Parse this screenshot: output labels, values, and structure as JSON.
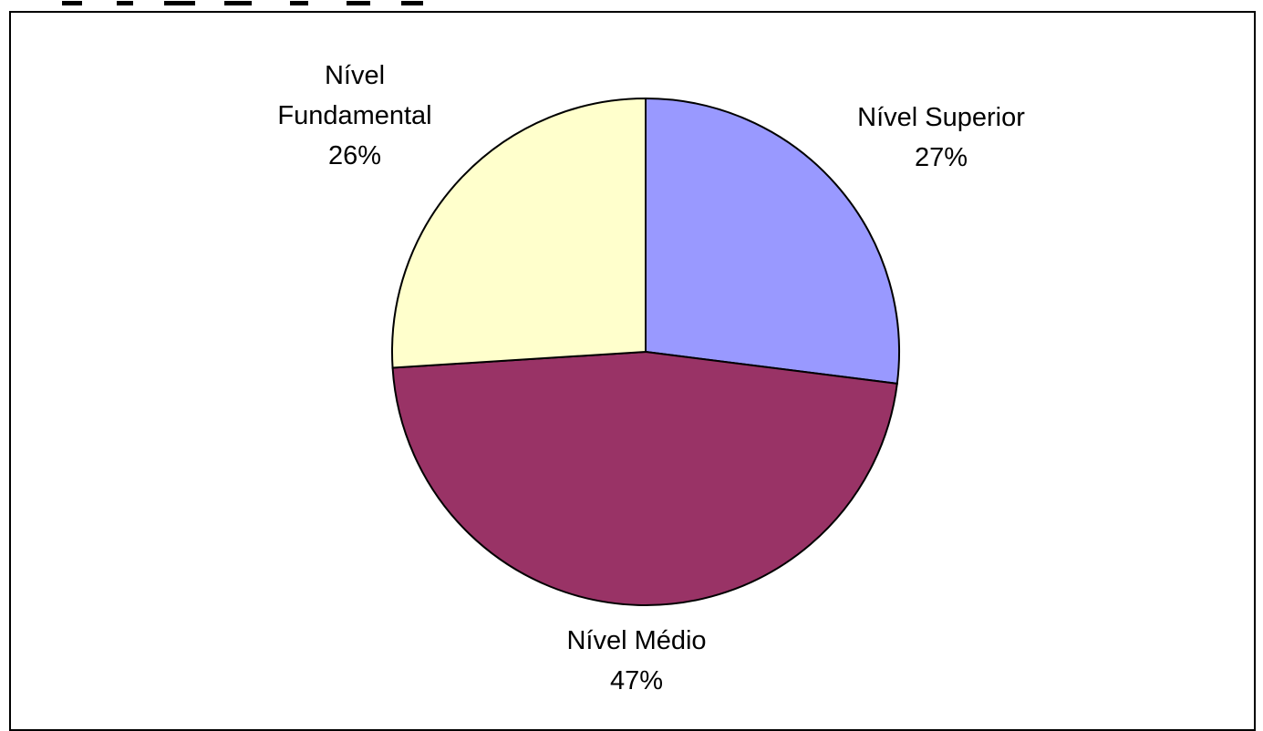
{
  "chart_data": {
    "type": "pie",
    "title": "",
    "slices": [
      {
        "label": "Nível Superior",
        "value": 27,
        "display": "27%",
        "color": "#9999ff"
      },
      {
        "label": "Nível Médio",
        "value": 47,
        "display": "47%",
        "color": "#993366"
      },
      {
        "label": "Nível Fundamental",
        "value": 26,
        "display": "26%",
        "color": "#ffffcc"
      }
    ],
    "start_angle": "12 o'clock",
    "direction": "clockwise",
    "edge_color": "#000000",
    "legend": "none (labels beside slices)"
  }
}
